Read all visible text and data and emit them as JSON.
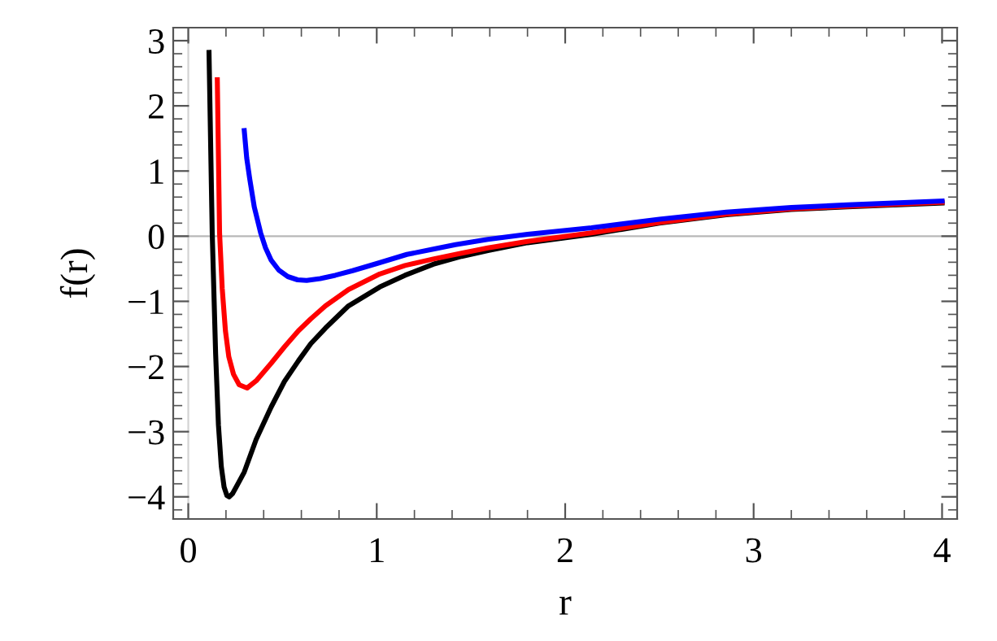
{
  "chart_data": {
    "type": "line",
    "xlabel": "r",
    "ylabel": "f(r)",
    "xlim": [
      -0.08,
      4.08
    ],
    "ylim": [
      -4.34,
      3.2
    ],
    "xticks": [
      0,
      {
        "value": 0.2,
        "label": null
      },
      {
        "value": 0.4,
        "label": null
      },
      {
        "value": 0.6,
        "label": null
      },
      {
        "value": 0.8,
        "label": null
      },
      1,
      {
        "value": 1.2,
        "label": null
      },
      {
        "value": 1.4,
        "label": null
      },
      {
        "value": 1.6,
        "label": null
      },
      {
        "value": 1.8,
        "label": null
      },
      2,
      {
        "value": 2.2,
        "label": null
      },
      {
        "value": 2.4,
        "label": null
      },
      {
        "value": 2.6,
        "label": null
      },
      {
        "value": 2.8,
        "label": null
      },
      3,
      {
        "value": 3.2,
        "label": null
      },
      {
        "value": 3.4,
        "label": null
      },
      {
        "value": 3.6,
        "label": null
      },
      {
        "value": 3.8,
        "label": null
      },
      4
    ],
    "yticks": [
      {
        "value": -4.2,
        "label": null
      },
      {
        "value": -4,
        "label": "−4"
      },
      {
        "value": -3.8,
        "label": null
      },
      {
        "value": -3.6,
        "label": null
      },
      {
        "value": -3.4,
        "label": null
      },
      {
        "value": -3.2,
        "label": null
      },
      {
        "value": -3,
        "label": "−3"
      },
      {
        "value": -2.8,
        "label": null
      },
      {
        "value": -2.6,
        "label": null
      },
      {
        "value": -2.4,
        "label": null
      },
      {
        "value": -2.2,
        "label": null
      },
      {
        "value": -2,
        "label": "−2"
      },
      {
        "value": -1.8,
        "label": null
      },
      {
        "value": -1.6,
        "label": null
      },
      {
        "value": -1.4,
        "label": null
      },
      {
        "value": -1.2,
        "label": null
      },
      {
        "value": -1,
        "label": "−1"
      },
      {
        "value": -0.8,
        "label": null
      },
      {
        "value": -0.6,
        "label": null
      },
      {
        "value": -0.4,
        "label": null
      },
      {
        "value": -0.2,
        "label": null
      },
      0,
      {
        "value": 0.2,
        "label": null
      },
      {
        "value": 0.4,
        "label": null
      },
      {
        "value": 0.6,
        "label": null
      },
      {
        "value": 0.8,
        "label": null
      },
      1,
      {
        "value": 1.2,
        "label": null
      },
      {
        "value": 1.4,
        "label": null
      },
      {
        "value": 1.6,
        "label": null
      },
      {
        "value": 1.8,
        "label": null
      },
      2,
      {
        "value": 2.2,
        "label": null
      },
      {
        "value": 2.4,
        "label": null
      },
      {
        "value": 2.6,
        "label": null
      },
      {
        "value": 2.8,
        "label": null
      },
      3
    ],
    "grid": false,
    "legend": false,
    "marker": "none",
    "line_style": "solid",
    "ref_lines": [
      {
        "axis": "y",
        "value": 0,
        "color": "#b8b8b8"
      },
      {
        "axis": "x",
        "value": 0,
        "color": "#d4d4d4"
      }
    ],
    "series": [
      {
        "color": "#000000",
        "x": [
          0.11,
          0.127,
          0.145,
          0.16,
          0.175,
          0.19,
          0.205,
          0.217,
          0.235,
          0.26,
          0.297,
          0.36,
          0.44,
          0.51,
          0.585,
          0.65,
          0.728,
          0.85,
          1.016,
          1.15,
          1.3,
          1.45,
          1.59,
          1.8,
          2.14,
          2.5,
          2.855,
          3.2,
          3.5,
          4.0
        ],
        "values": [
          2.82,
          0.05,
          -1.8,
          -2.9,
          -3.53,
          -3.85,
          -3.98,
          -4.0,
          -3.95,
          -3.82,
          -3.62,
          -3.12,
          -2.62,
          -2.23,
          -1.91,
          -1.65,
          -1.41,
          -1.07,
          -0.78,
          -0.6,
          -0.43,
          -0.31,
          -0.22,
          -0.1,
          0.03,
          0.2,
          0.33,
          0.41,
          0.45,
          0.51
        ]
      },
      {
        "color": "#ff0000",
        "x": [
          0.154,
          0.166,
          0.18,
          0.197,
          0.215,
          0.24,
          0.27,
          0.312,
          0.36,
          0.44,
          0.51,
          0.585,
          0.65,
          0.728,
          0.85,
          1.016,
          1.15,
          1.3,
          1.45,
          1.59,
          1.8,
          2.14,
          2.5,
          2.855,
          3.2,
          3.5,
          4.0
        ],
        "values": [
          2.4,
          0.05,
          -0.8,
          -1.45,
          -1.85,
          -2.12,
          -2.28,
          -2.33,
          -2.22,
          -1.95,
          -1.7,
          -1.45,
          -1.27,
          -1.07,
          -0.82,
          -0.58,
          -0.45,
          -0.35,
          -0.26,
          -0.18,
          -0.08,
          0.05,
          0.21,
          0.34,
          0.42,
          0.46,
          0.52
        ]
      },
      {
        "color": "#0000ff",
        "x": [
          0.297,
          0.31,
          0.326,
          0.35,
          0.384,
          0.41,
          0.44,
          0.48,
          0.528,
          0.58,
          0.628,
          0.7,
          0.78,
          0.872,
          1.0,
          1.16,
          1.3,
          1.418,
          1.59,
          1.8,
          2.14,
          2.5,
          2.855,
          3.2,
          3.5,
          4.0
        ],
        "values": [
          1.62,
          1.2,
          0.88,
          0.45,
          0.05,
          -0.18,
          -0.37,
          -0.52,
          -0.62,
          -0.67,
          -0.68,
          -0.65,
          -0.6,
          -0.53,
          -0.42,
          -0.28,
          -0.2,
          -0.13,
          -0.05,
          0.03,
          0.13,
          0.26,
          0.37,
          0.44,
          0.48,
          0.54
        ]
      }
    ]
  }
}
